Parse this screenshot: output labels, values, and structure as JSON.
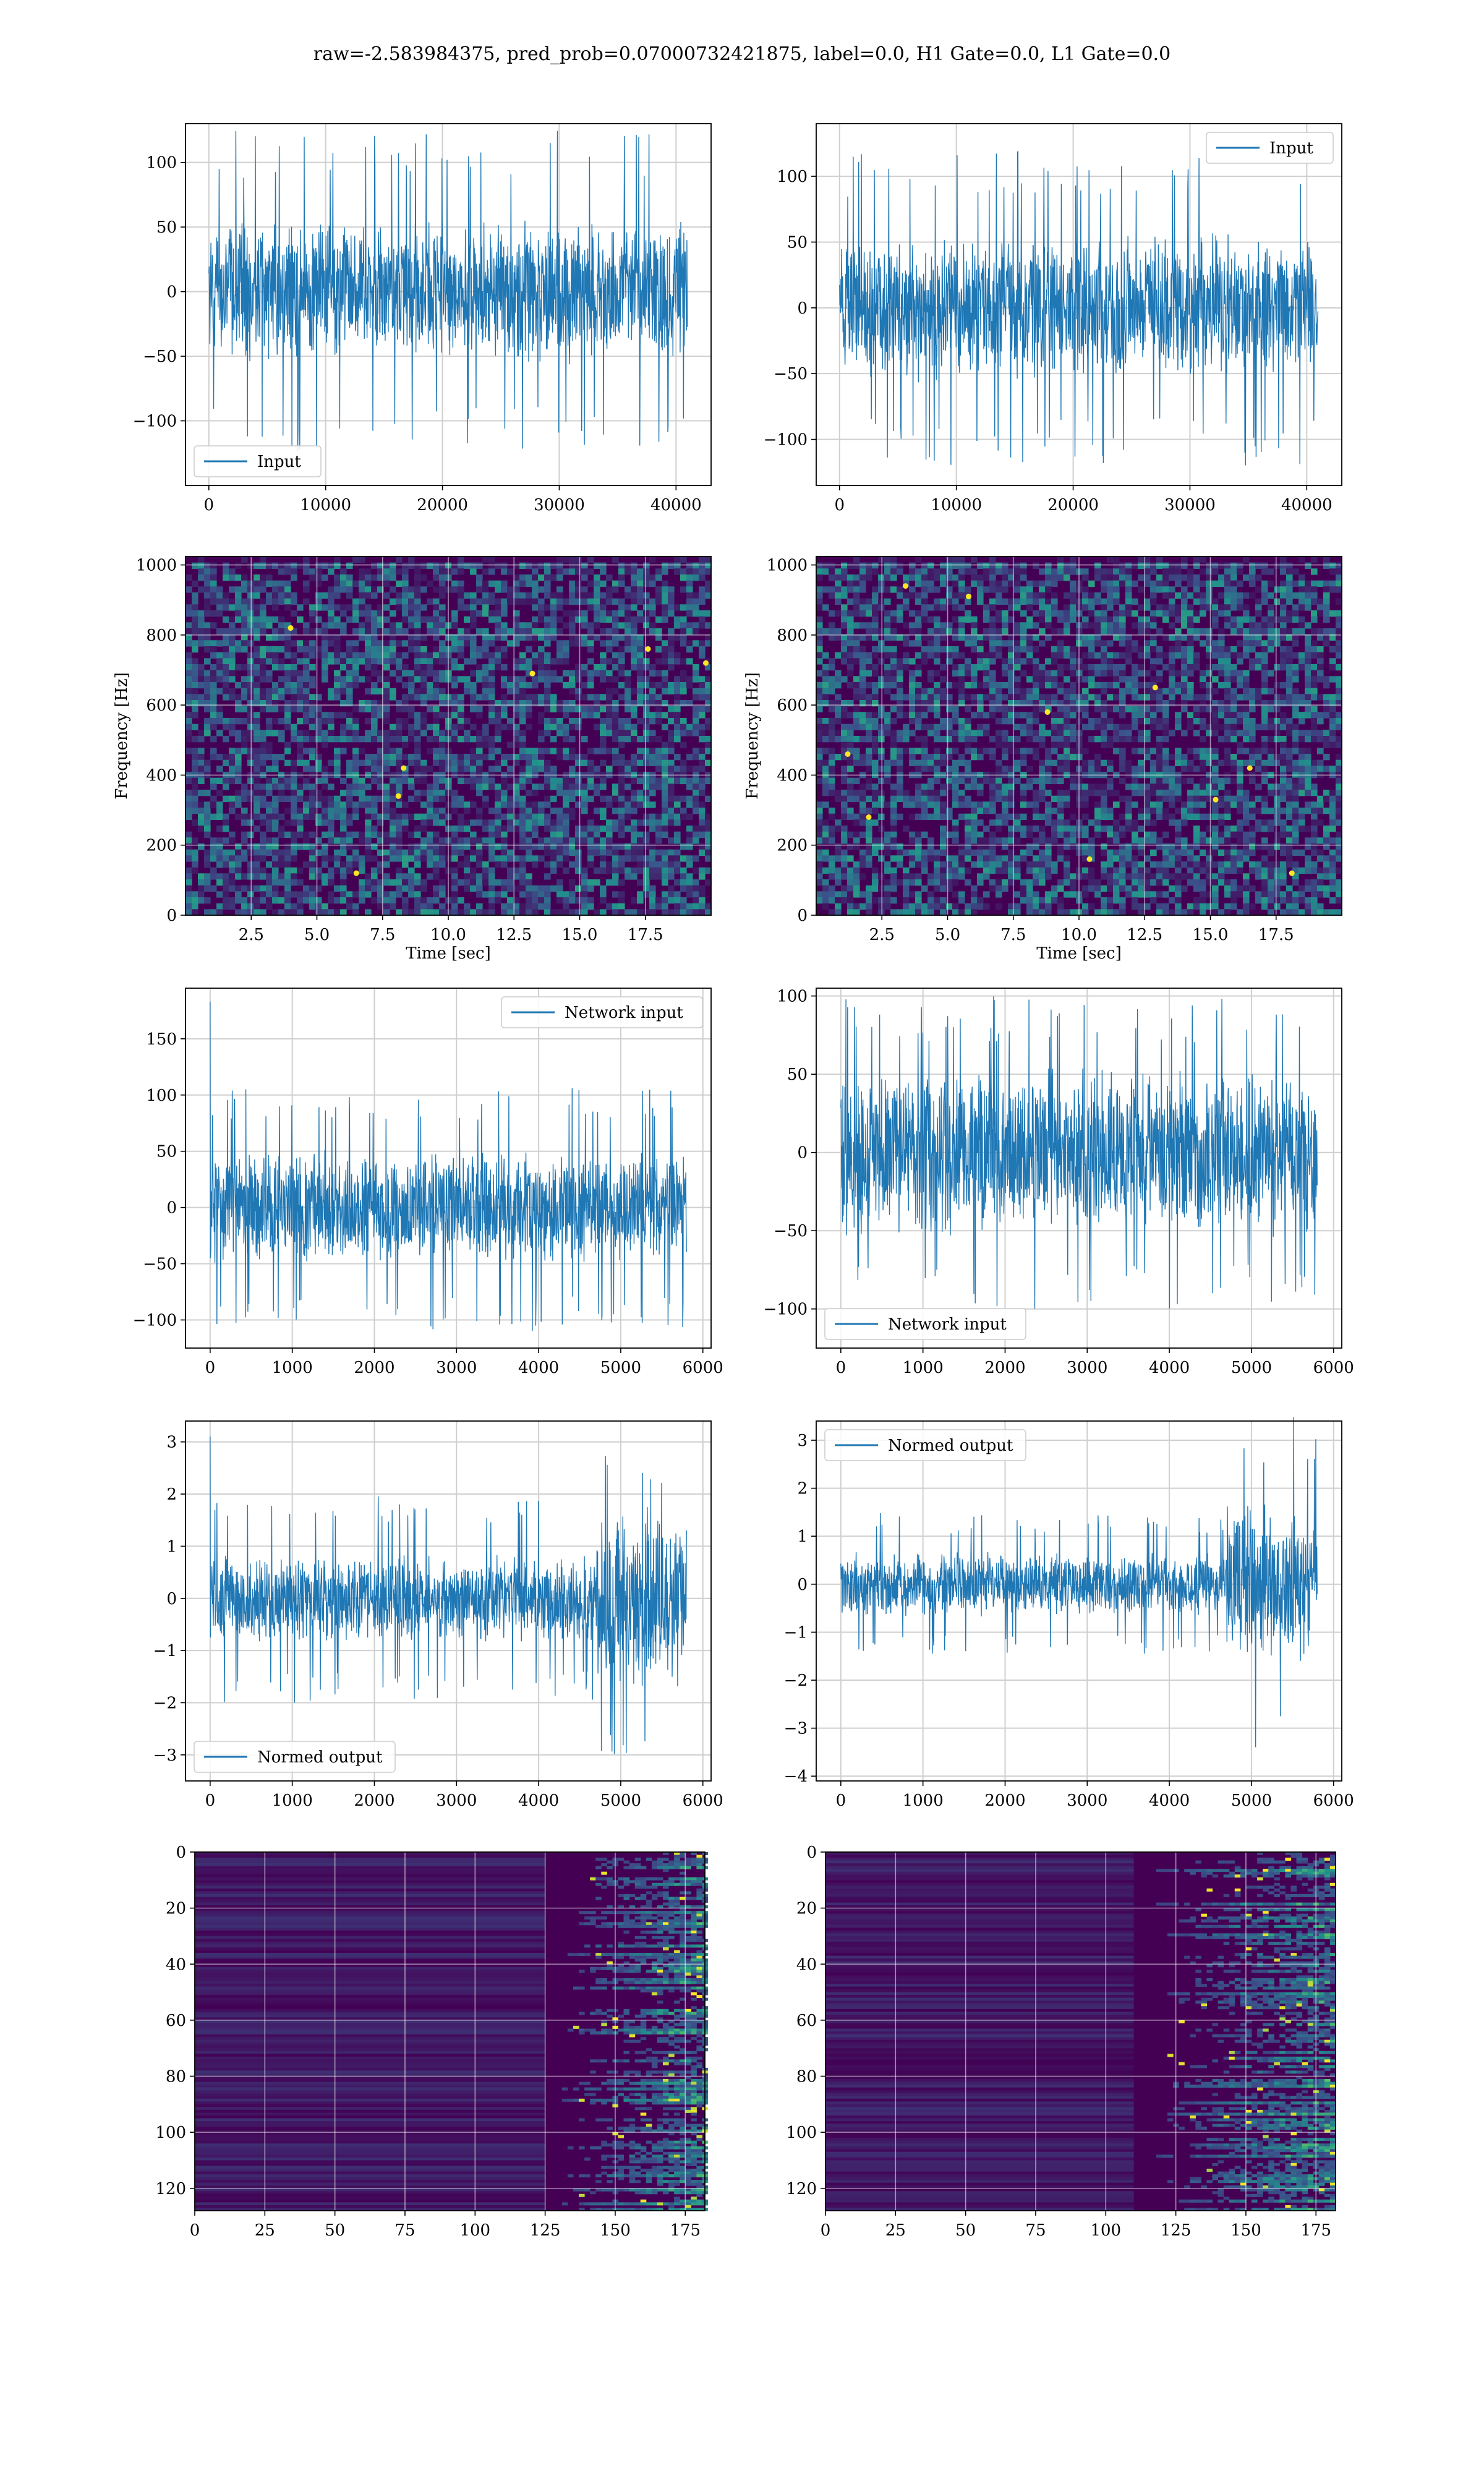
{
  "figure": {
    "suptitle": "raw=-2.583984375, pred_prob=0.07000732421875, label=0.0, H1 Gate=0.0, L1 Gate=0.0",
    "colors": {
      "line": "#1f77b4",
      "grid": "#cfcfcf",
      "viridis_dark": "#440154",
      "viridis_blue": "#31688e",
      "viridis_teal": "#35b779",
      "viridis_yellow": "#fde725"
    }
  },
  "chart_data": [
    {
      "id": "p1",
      "type": "line",
      "title": "",
      "xlabel": "",
      "ylabel": "",
      "xlim": [
        -2000,
        43000
      ],
      "ylim": [
        -150,
        130
      ],
      "xticks": [
        0,
        10000,
        20000,
        30000,
        40000
      ],
      "xtick_labels": [
        "0",
        "10000",
        "20000",
        "30000",
        "40000"
      ],
      "yticks": [
        -100,
        -50,
        0,
        50,
        100
      ],
      "ytick_labels": [
        "−100",
        "−50",
        "0",
        "50",
        "100"
      ],
      "grid": true,
      "legend": "lower-left",
      "series": [
        {
          "name": "Input",
          "x_range": [
            0,
            40960
          ],
          "n_points": 40960,
          "typical_amplitude": 50,
          "peak_amplitude": 125,
          "spike_at_start": 0
        }
      ]
    },
    {
      "id": "p2",
      "type": "line",
      "title": "",
      "xlabel": "",
      "ylabel": "",
      "xlim": [
        -2000,
        43000
      ],
      "ylim": [
        -135,
        140
      ],
      "xticks": [
        0,
        10000,
        20000,
        30000,
        40000
      ],
      "xtick_labels": [
        "0",
        "10000",
        "20000",
        "30000",
        "40000"
      ],
      "yticks": [
        -100,
        -50,
        0,
        50,
        100
      ],
      "ytick_labels": [
        "−100",
        "−50",
        "0",
        "50",
        "100"
      ],
      "grid": true,
      "legend": "upper-right",
      "series": [
        {
          "name": "Input",
          "x_range": [
            0,
            40960
          ],
          "n_points": 40960,
          "typical_amplitude": 50,
          "peak_amplitude": 120,
          "spike_at_start": 0
        }
      ]
    },
    {
      "id": "p3",
      "type": "heatmap",
      "title": "",
      "xlabel": "Time [sec]",
      "ylabel": "Frequency [Hz]",
      "xlim": [
        0,
        20
      ],
      "ylim": [
        0,
        1024
      ],
      "xticks": [
        2.5,
        5,
        7.5,
        10,
        12.5,
        15,
        17.5
      ],
      "xtick_labels": [
        "2.5",
        "5.0",
        "7.5",
        "10.0",
        "12.5",
        "15.0",
        "17.5"
      ],
      "yticks": [
        0,
        200,
        400,
        600,
        800,
        1000
      ],
      "ytick_labels": [
        "0",
        "200",
        "400",
        "600",
        "800",
        "1000"
      ],
      "grid": true,
      "colormap": "viridis",
      "dark_band_hz": [
        470,
        500
      ],
      "dark_band_hz_2": [
        1000,
        1024
      ],
      "bright_spots": [
        [
          13.2,
          690
        ],
        [
          8.3,
          420
        ],
        [
          8.1,
          340
        ],
        [
          17.6,
          760
        ],
        [
          19.8,
          720
        ],
        [
          4.0,
          820
        ],
        [
          6.5,
          120
        ]
      ]
    },
    {
      "id": "p4",
      "type": "heatmap",
      "title": "",
      "xlabel": "Time [sec]",
      "ylabel": "Frequency [Hz]",
      "xlim": [
        0,
        20
      ],
      "ylim": [
        0,
        1024
      ],
      "xticks": [
        2.5,
        5,
        7.5,
        10,
        12.5,
        15,
        17.5
      ],
      "xtick_labels": [
        "2.5",
        "5.0",
        "7.5",
        "10.0",
        "12.5",
        "15.0",
        "17.5"
      ],
      "yticks": [
        0,
        200,
        400,
        600,
        800,
        1000
      ],
      "ytick_labels": [
        "0",
        "200",
        "400",
        "600",
        "800",
        "1000"
      ],
      "grid": true,
      "colormap": "viridis",
      "dark_band_hz": [
        470,
        500
      ],
      "dark_band_hz_2": [
        1000,
        1024
      ],
      "bright_spots": [
        [
          1.2,
          460
        ],
        [
          5.8,
          910
        ],
        [
          8.8,
          580
        ],
        [
          12.9,
          650
        ],
        [
          16.5,
          420
        ],
        [
          2.0,
          280
        ],
        [
          10.4,
          160
        ],
        [
          18.1,
          120
        ],
        [
          3.4,
          940
        ],
        [
          15.2,
          330
        ]
      ]
    },
    {
      "id": "p5",
      "type": "line",
      "title": "",
      "xlabel": "",
      "ylabel": "",
      "xlim": [
        -300,
        6100
      ],
      "ylim": [
        -125,
        195
      ],
      "xticks": [
        0,
        1000,
        2000,
        3000,
        4000,
        5000,
        6000
      ],
      "xtick_labels": [
        "0",
        "1000",
        "2000",
        "3000",
        "4000",
        "5000",
        "6000"
      ],
      "yticks": [
        -100,
        -50,
        0,
        50,
        100,
        150
      ],
      "ytick_labels": [
        "−100",
        "−50",
        "0",
        "50",
        "100",
        "150"
      ],
      "grid": true,
      "legend": "upper-right",
      "series": [
        {
          "name": "Network input",
          "x_range": [
            0,
            5800
          ],
          "n_points": 5800,
          "typical_amplitude": 45,
          "peak_amplitude": 110,
          "spike_at_start": 183
        }
      ]
    },
    {
      "id": "p6",
      "type": "line",
      "title": "",
      "xlabel": "",
      "ylabel": "",
      "xlim": [
        -300,
        6100
      ],
      "ylim": [
        -125,
        105
      ],
      "xticks": [
        0,
        1000,
        2000,
        3000,
        4000,
        5000,
        6000
      ],
      "xtick_labels": [
        "0",
        "1000",
        "2000",
        "3000",
        "4000",
        "5000",
        "6000"
      ],
      "yticks": [
        -100,
        -50,
        0,
        50,
        100
      ],
      "ytick_labels": [
        "−100",
        "−50",
        "0",
        "50",
        "100"
      ],
      "grid": true,
      "legend": "lower-left",
      "series": [
        {
          "name": "Network input",
          "x_range": [
            0,
            5800
          ],
          "n_points": 5800,
          "typical_amplitude": 48,
          "peak_amplitude": 100,
          "spike_at_start": 0
        }
      ]
    },
    {
      "id": "p7",
      "type": "line",
      "title": "",
      "xlabel": "",
      "ylabel": "",
      "xlim": [
        -300,
        6100
      ],
      "ylim": [
        -3.5,
        3.4
      ],
      "xticks": [
        0,
        1000,
        2000,
        3000,
        4000,
        5000,
        6000
      ],
      "xtick_labels": [
        "0",
        "1000",
        "2000",
        "3000",
        "4000",
        "5000",
        "6000"
      ],
      "yticks": [
        -3,
        -2,
        -1,
        0,
        1,
        2,
        3
      ],
      "ytick_labels": [
        "−3",
        "−2",
        "−1",
        "0",
        "1",
        "2",
        "3"
      ],
      "grid": true,
      "legend": "lower-left",
      "series": [
        {
          "name": "Normed output",
          "x_range": [
            0,
            5800
          ],
          "n_points": 5800,
          "typical_amplitude": 0.75,
          "peak_amplitude": 2.0,
          "burst_from": 4700,
          "burst_amplitude": 1.6,
          "burst_peak": 3.1,
          "spike_at_start": 3.1
        }
      ]
    },
    {
      "id": "p8",
      "type": "line",
      "title": "",
      "xlabel": "",
      "ylabel": "",
      "xlim": [
        -300,
        6100
      ],
      "ylim": [
        -4.1,
        3.4
      ],
      "xticks": [
        0,
        1000,
        2000,
        3000,
        4000,
        5000,
        6000
      ],
      "xtick_labels": [
        "0",
        "1000",
        "2000",
        "3000",
        "4000",
        "5000",
        "6000"
      ],
      "yticks": [
        -4,
        -3,
        -2,
        -1,
        0,
        1,
        2,
        3
      ],
      "ytick_labels": [
        "−4",
        "−3",
        "−2",
        "−1",
        "0",
        "1",
        "2",
        "3"
      ],
      "grid": true,
      "legend": "upper-left",
      "series": [
        {
          "name": "Normed output",
          "x_range": [
            0,
            5800
          ],
          "n_points": 5800,
          "typical_amplitude": 0.6,
          "peak_amplitude": 1.5,
          "burst_from": 4700,
          "burst_amplitude": 1.5,
          "burst_peak": 3.6,
          "spike_at_start": 0
        }
      ]
    },
    {
      "id": "p9",
      "type": "heatmap",
      "title": "",
      "xlabel": "",
      "ylabel": "",
      "xlim": [
        0,
        182
      ],
      "ylim": [
        128,
        0
      ],
      "xticks": [
        0,
        25,
        50,
        75,
        100,
        125,
        150,
        175
      ],
      "xtick_labels": [
        "0",
        "25",
        "50",
        "75",
        "100",
        "125",
        "150",
        "175"
      ],
      "yticks": [
        0,
        20,
        40,
        60,
        80,
        100,
        120
      ],
      "ytick_labels": [
        "0",
        "20",
        "40",
        "60",
        "80",
        "100",
        "120"
      ],
      "grid": true,
      "colormap": "viridis",
      "rows": 128,
      "cols": 182,
      "active_from_col": 125
    },
    {
      "id": "p10",
      "type": "heatmap",
      "title": "",
      "xlabel": "",
      "ylabel": "",
      "xlim": [
        0,
        182
      ],
      "ylim": [
        128,
        0
      ],
      "xticks": [
        0,
        25,
        50,
        75,
        100,
        125,
        150,
        175
      ],
      "xtick_labels": [
        "0",
        "25",
        "50",
        "75",
        "100",
        "125",
        "150",
        "175"
      ],
      "yticks": [
        0,
        20,
        40,
        60,
        80,
        100,
        120
      ],
      "ytick_labels": [
        "0",
        "20",
        "40",
        "60",
        "80",
        "100",
        "120"
      ],
      "grid": true,
      "colormap": "viridis",
      "rows": 128,
      "cols": 182,
      "active_from_col": 110
    }
  ]
}
